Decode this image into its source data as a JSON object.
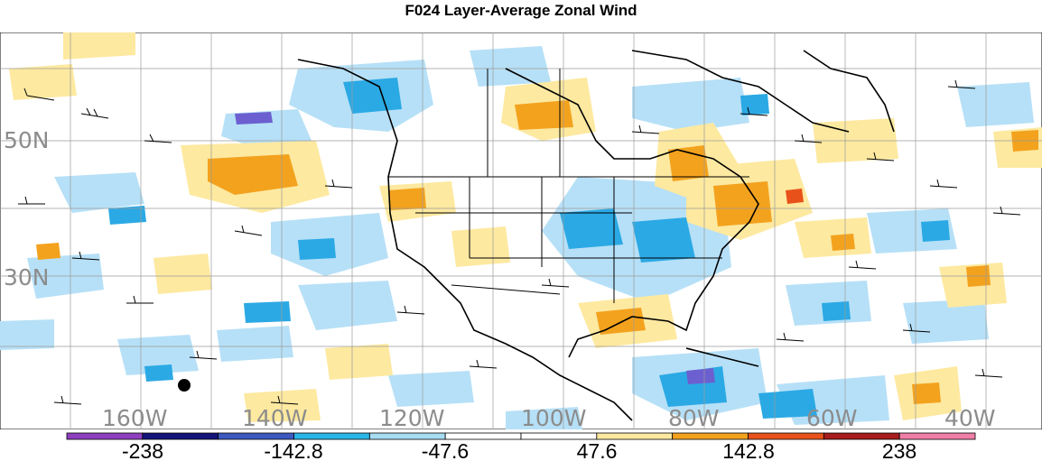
{
  "title": "F024 Layer-Average Zonal Wind",
  "lat_labels": [
    "50N",
    "30N"
  ],
  "lon_labels": [
    "160W",
    "140W",
    "120W",
    "100W",
    "80W",
    "60W",
    "40W"
  ],
  "colorbar": {
    "colors": [
      "#8e3fbf",
      "#13137a",
      "#3d59c0",
      "#29b5e8",
      "#a7dcf3",
      "#ffffff",
      "#ffffff",
      "#fde9a0",
      "#f3a21e",
      "#e8521a",
      "#a71c1c",
      "#f07fa7"
    ],
    "tick_labels": [
      "-238",
      "-142.8",
      "-47.6",
      "47.6",
      "142.8",
      "238"
    ]
  },
  "palette": {
    "neg_light": "#b6e0f7",
    "neg_mid": "#2ba9e4",
    "neg_strong": "#6c5fd0",
    "pos_light": "#fde9a0",
    "pos_mid": "#f3a21e",
    "pos_strong": "#e8521a"
  }
}
